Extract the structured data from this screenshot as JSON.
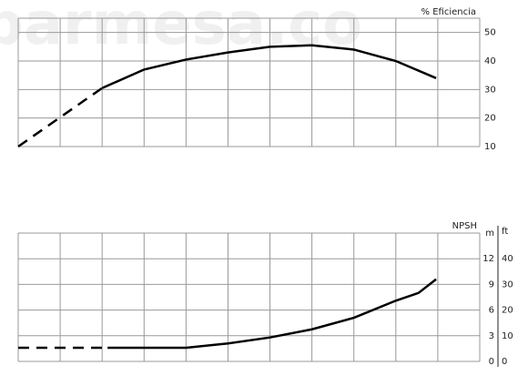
{
  "watermark": "parmesa.co",
  "chart_data": [
    {
      "type": "line",
      "title": "% Eficiencia",
      "xlim": [
        0,
        11
      ],
      "ylim": [
        10,
        55
      ],
      "yticks": [
        10,
        20,
        30,
        40,
        50
      ],
      "series": [
        {
          "style": "dashed",
          "color": "#000000",
          "x": [
            0,
            2.0
          ],
          "values": [
            10,
            30.5
          ]
        },
        {
          "style": "solid",
          "color": "#000000",
          "x": [
            2.0,
            3.0,
            4.0,
            5.0,
            6.0,
            7.0,
            8.0,
            9.0,
            9.96
          ],
          "values": [
            30.5,
            37,
            40.5,
            43,
            45,
            45.5,
            44,
            40,
            34
          ]
        }
      ]
    },
    {
      "type": "line",
      "title": "NPSH",
      "y_label": "m",
      "y2_label": "ft",
      "xlim": [
        0,
        11
      ],
      "ylim": [
        0,
        15
      ],
      "yticks": [
        0,
        3,
        6,
        9,
        12
      ],
      "y2lim": [
        0,
        50
      ],
      "y2ticks": [
        0,
        10,
        20,
        30,
        40
      ],
      "series": [
        {
          "style": "dashed",
          "color": "#000000",
          "x": [
            0,
            2.0
          ],
          "values": [
            1.6,
            1.6
          ]
        },
        {
          "style": "solid",
          "color": "#000000",
          "x": [
            2.13,
            3.0,
            4.0,
            5.0,
            6.0,
            7.0,
            8.0,
            9.0,
            9.54,
            9.96
          ],
          "values": [
            1.6,
            1.6,
            1.6,
            2.1,
            2.8,
            3.75,
            5.1,
            7.1,
            8.0,
            9.6
          ]
        }
      ]
    }
  ]
}
